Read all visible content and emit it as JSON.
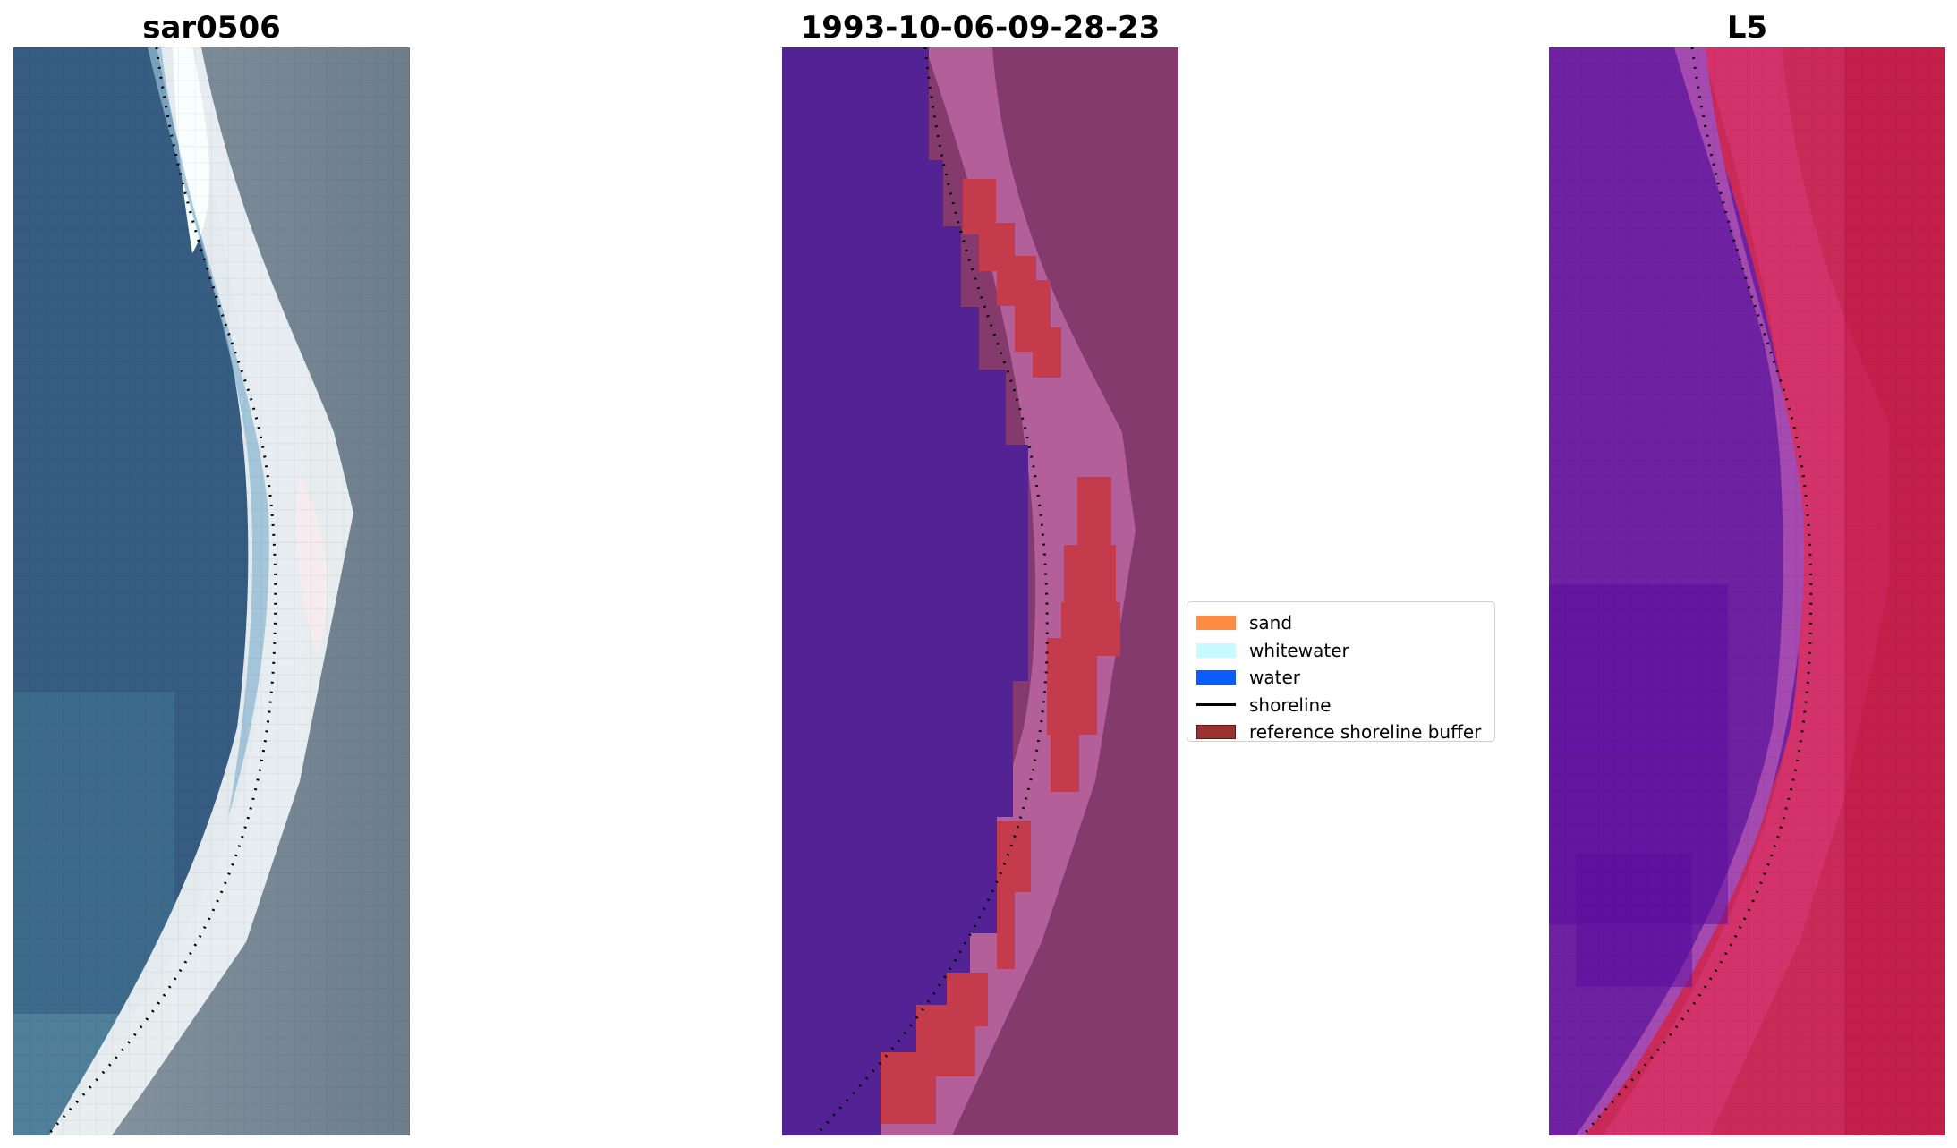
{
  "figure": {
    "panels": [
      {
        "title": "sar0506"
      },
      {
        "title": "1993-10-06-09-28-23"
      },
      {
        "title": "L5"
      }
    ],
    "legend": {
      "placement": "center",
      "items": [
        {
          "label": "sand",
          "kind": "patch",
          "color": "#ff8c42"
        },
        {
          "label": "whitewater",
          "kind": "patch",
          "color": "#c8fbff"
        },
        {
          "label": "water",
          "kind": "patch",
          "color": "#0a5cff"
        },
        {
          "label": "shoreline",
          "kind": "line",
          "color": "#000000"
        },
        {
          "label": "reference shoreline buffer",
          "kind": "patch",
          "color": "#9b3232"
        }
      ]
    },
    "colors": {
      "ocean_rgb": "#3b6186",
      "surf_white": "#f0f3f3",
      "land_gray": "#7d8c98",
      "classified_water": "#532396",
      "classified_land": "#8a3a70",
      "classified_shore_band": "#b15e9c",
      "buffer": "#c43c4b",
      "index_low": "#6a18a4",
      "index_high": "#c0163e"
    }
  }
}
